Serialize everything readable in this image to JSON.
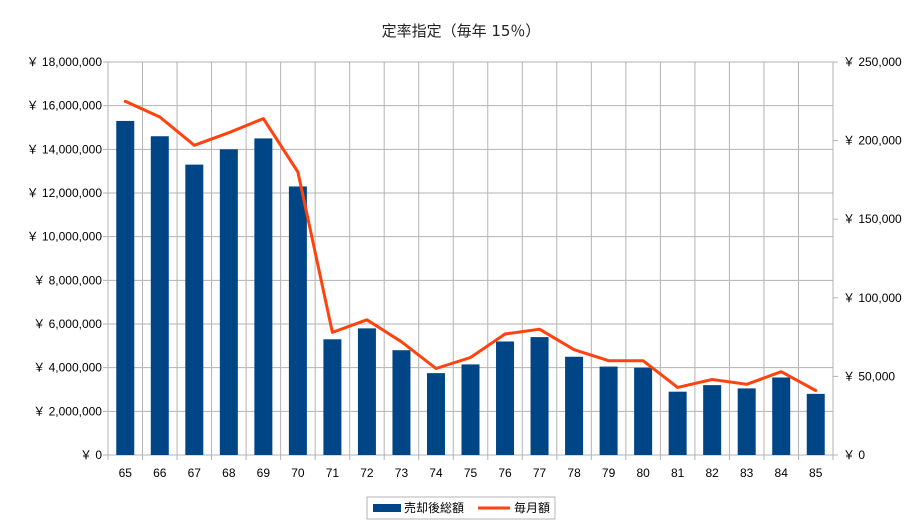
{
  "chart_data": {
    "type": "bar",
    "title": "定率指定（毎年 15％）",
    "xlabel": "",
    "ylabel": "",
    "categories": [
      "65",
      "66",
      "67",
      "68",
      "69",
      "70",
      "71",
      "72",
      "73",
      "74",
      "75",
      "76",
      "77",
      "78",
      "79",
      "80",
      "81",
      "82",
      "83",
      "84",
      "85"
    ],
    "series": [
      {
        "name": "売却後総額",
        "type": "bar",
        "axis": "left",
        "color": "#004586",
        "values": [
          15300000,
          14600000,
          13300000,
          14000000,
          14500000,
          12300000,
          5300000,
          5800000,
          4800000,
          3750000,
          4150000,
          5200000,
          5400000,
          4500000,
          4050000,
          4000000,
          2900000,
          3200000,
          3050000,
          3550000,
          2800000
        ]
      },
      {
        "name": "毎月額",
        "type": "line",
        "axis": "right",
        "color": "#ff420e",
        "values": [
          225000,
          215000,
          197000,
          205000,
          214000,
          180000,
          78000,
          86000,
          72000,
          55000,
          62000,
          77000,
          80000,
          67000,
          60000,
          60000,
          43000,
          48000,
          45000,
          53000,
          41000
        ]
      }
    ],
    "y_left": {
      "ylim": [
        0,
        18000000
      ],
      "ticks": [
        0,
        2000000,
        4000000,
        6000000,
        8000000,
        10000000,
        12000000,
        14000000,
        16000000,
        18000000
      ],
      "tick_labels": [
        "￥ 0",
        "￥ 2,000,000",
        "￥ 4,000,000",
        "￥ 6,000,000",
        "￥ 8,000,000",
        "￥ 10,000,000",
        "￥ 12,000,000",
        "￥ 14,000,000",
        "￥ 16,000,000",
        "￥ 18,000,000"
      ]
    },
    "y_right": {
      "ylim": [
        0,
        250000
      ],
      "ticks": [
        0,
        50000,
        100000,
        150000,
        200000,
        250000
      ],
      "tick_labels": [
        "￥ 0",
        "￥ 50,000",
        "￥ 100,000",
        "￥ 150,000",
        "￥ 200,000",
        "￥ 250,000"
      ]
    },
    "grid": true,
    "legend_position": "bottom-center"
  }
}
